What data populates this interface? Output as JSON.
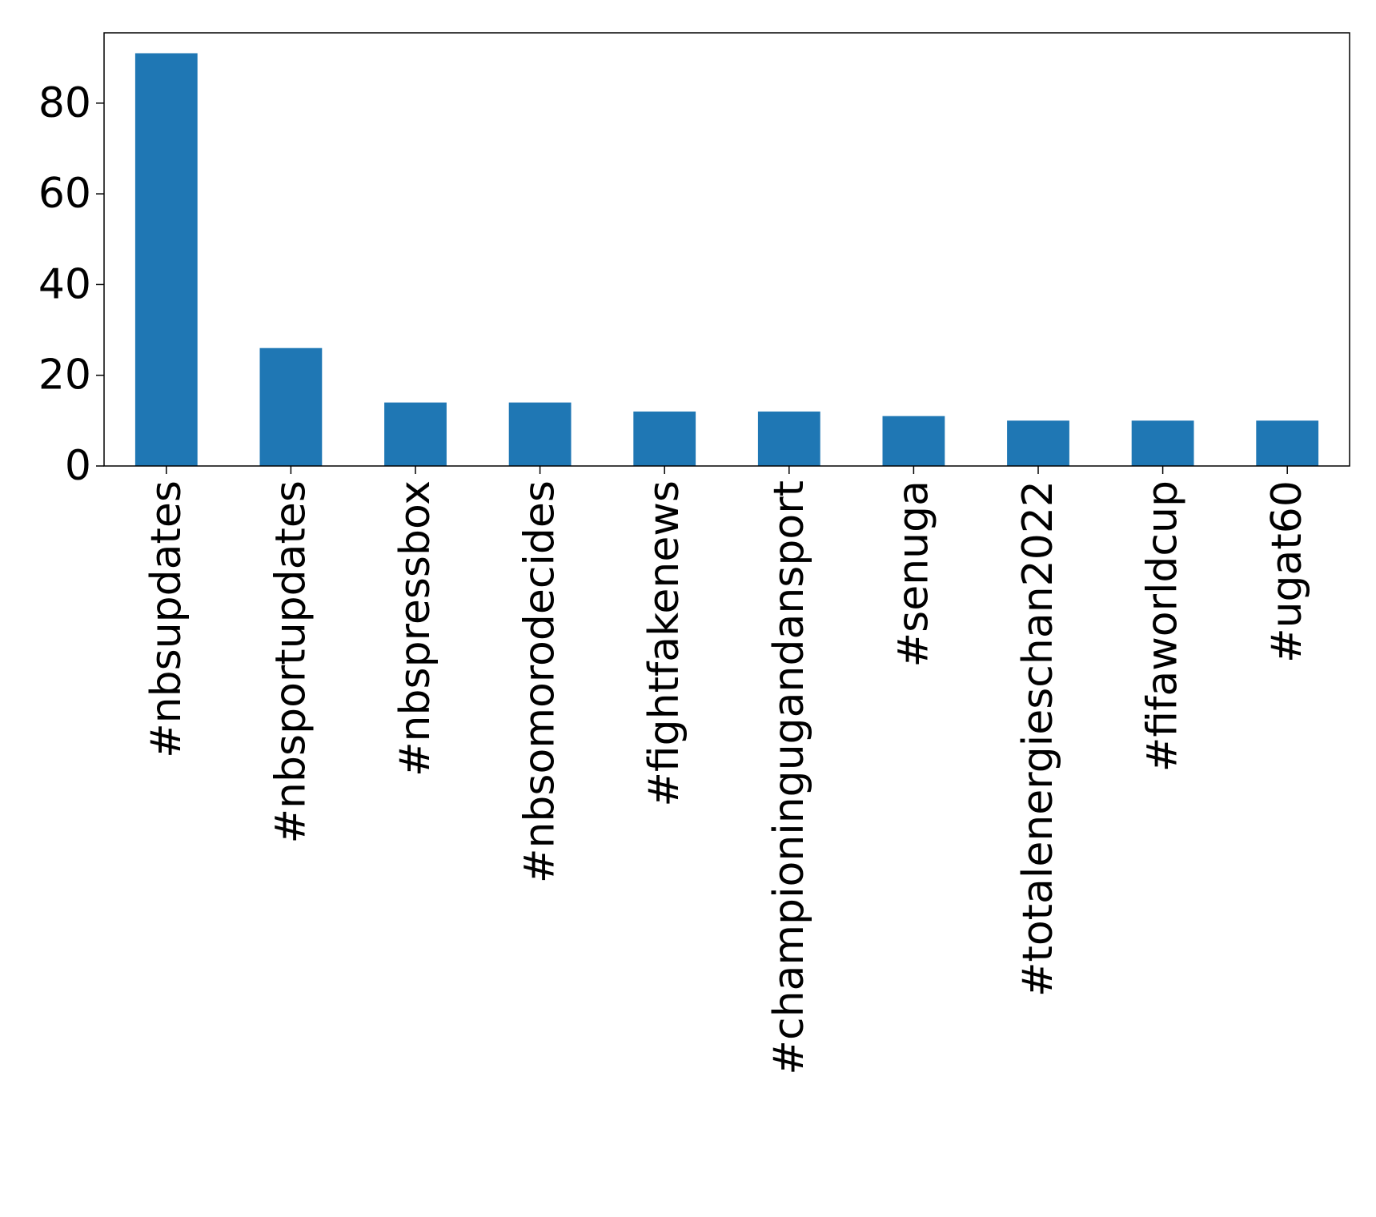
{
  "chart_data": {
    "type": "bar",
    "title": "",
    "xlabel": "",
    "ylabel": "",
    "categories": [
      "#nbsupdates",
      "#nbsportupdates",
      "#nbspressbox",
      "#nbsomorodecides",
      "#fightfakenews",
      "#championingugandansport",
      "#senuga",
      "#totalenergieschan2022",
      "#fifaworldcup",
      "#ugat60"
    ],
    "values": [
      91,
      26,
      14,
      14,
      12,
      12,
      11,
      10,
      10,
      10
    ],
    "ylim": [
      0,
      95.5
    ],
    "yticks": [
      0,
      20,
      40,
      60,
      80
    ],
    "colors": {
      "bar": "#1f77b4",
      "axis": "#000000",
      "background": "#ffffff"
    },
    "grid": false,
    "legend": "none"
  }
}
